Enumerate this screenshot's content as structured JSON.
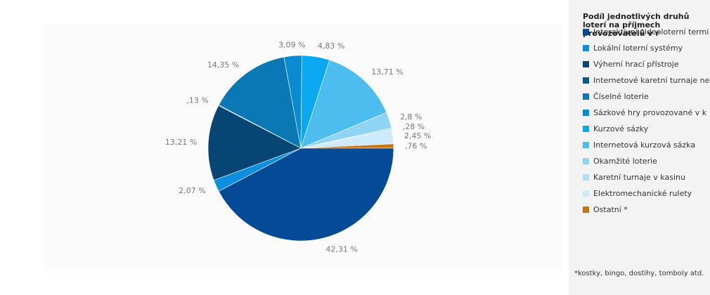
{
  "chart_data": {
    "type": "pie",
    "title": "Podíl jednotlivých druhů loterí na příjmech provozovatelů v r",
    "slices": [
      {
        "name": "Ostatní *",
        "value": 0.76,
        "label": ",76 %",
        "color": "#c87514"
      },
      {
        "name": "Lokální loterní systémy",
        "value": 42.31,
        "label": "42,31 %",
        "color": "#054a96"
      },
      {
        "name": "Kurzové sázky",
        "value": 2.07,
        "label": "2,07 %",
        "color": "#0a8fe0"
      },
      {
        "name": "Výherní hrací přístroje",
        "value": 13.21,
        "label": "13,21 %",
        "color": "#074674"
      },
      {
        "name": "Internetové karetní turnaje ne",
        "value": 0.13,
        "label": ",13 %",
        "color": "#0a5a8c"
      },
      {
        "name": "Číselné loterie",
        "value": 14.35,
        "label": "14,35 %",
        "color": "#0a78b4"
      },
      {
        "name": "Sázkové hry provozované v k",
        "value": 3.09,
        "label": "3,09 %",
        "color": "#0a8ad0"
      },
      {
        "name": "Internetová kurzová sázka",
        "value": 4.83,
        "label": "4,83 %",
        "color": "#0aa8f0"
      },
      {
        "name": "Okamžité loterie",
        "value": 13.71,
        "label": "13,71 %",
        "color": "#4dbdf0"
      },
      {
        "name": "Karetní turnaje v kasinu",
        "value": 2.8,
        "label": "2,8 %",
        "color": "#8fd4f4"
      },
      {
        "name": "Interaktivní videoloterní terminály",
        "value": 0.28,
        "label": ",28 %",
        "color": "#aee0f7"
      },
      {
        "name": "Elektromechanické rulety",
        "value": 2.45,
        "label": "2,45 %",
        "color": "#cdeafa"
      }
    ]
  },
  "legend": {
    "title": "Podíl jednotlivých druhů loterí na příjmech provozovatelů v r",
    "items": [
      {
        "label": "Interaktivní videoloterní termi",
        "color": "#054a96"
      },
      {
        "label": "Lokální loterní systémy",
        "color": "#0a8fe0"
      },
      {
        "label": "Výherní hrací přístroje",
        "color": "#074674"
      },
      {
        "label": "Internetové karetní turnaje ne",
        "color": "#0a5a8c"
      },
      {
        "label": "Číselné loterie",
        "color": "#0a78b4"
      },
      {
        "label": "Sázkové hry provozované v k",
        "color": "#0a8ad0"
      },
      {
        "label": "Kurzové sázky",
        "color": "#0aa8f0"
      },
      {
        "label": "Internetová kurzová sázka",
        "color": "#4dbdf0"
      },
      {
        "label": "Okamžité loterie",
        "color": "#8fd4f4"
      },
      {
        "label": "Karetní turnaje v kasinu",
        "color": "#aee0f7"
      },
      {
        "label": "Elektromechanické rulety",
        "color": "#cdeafa"
      },
      {
        "label": "Ostatní *",
        "color": "#c87514"
      }
    ],
    "footnote": "*kostky, bingo, dostihy, tomboly atd."
  }
}
